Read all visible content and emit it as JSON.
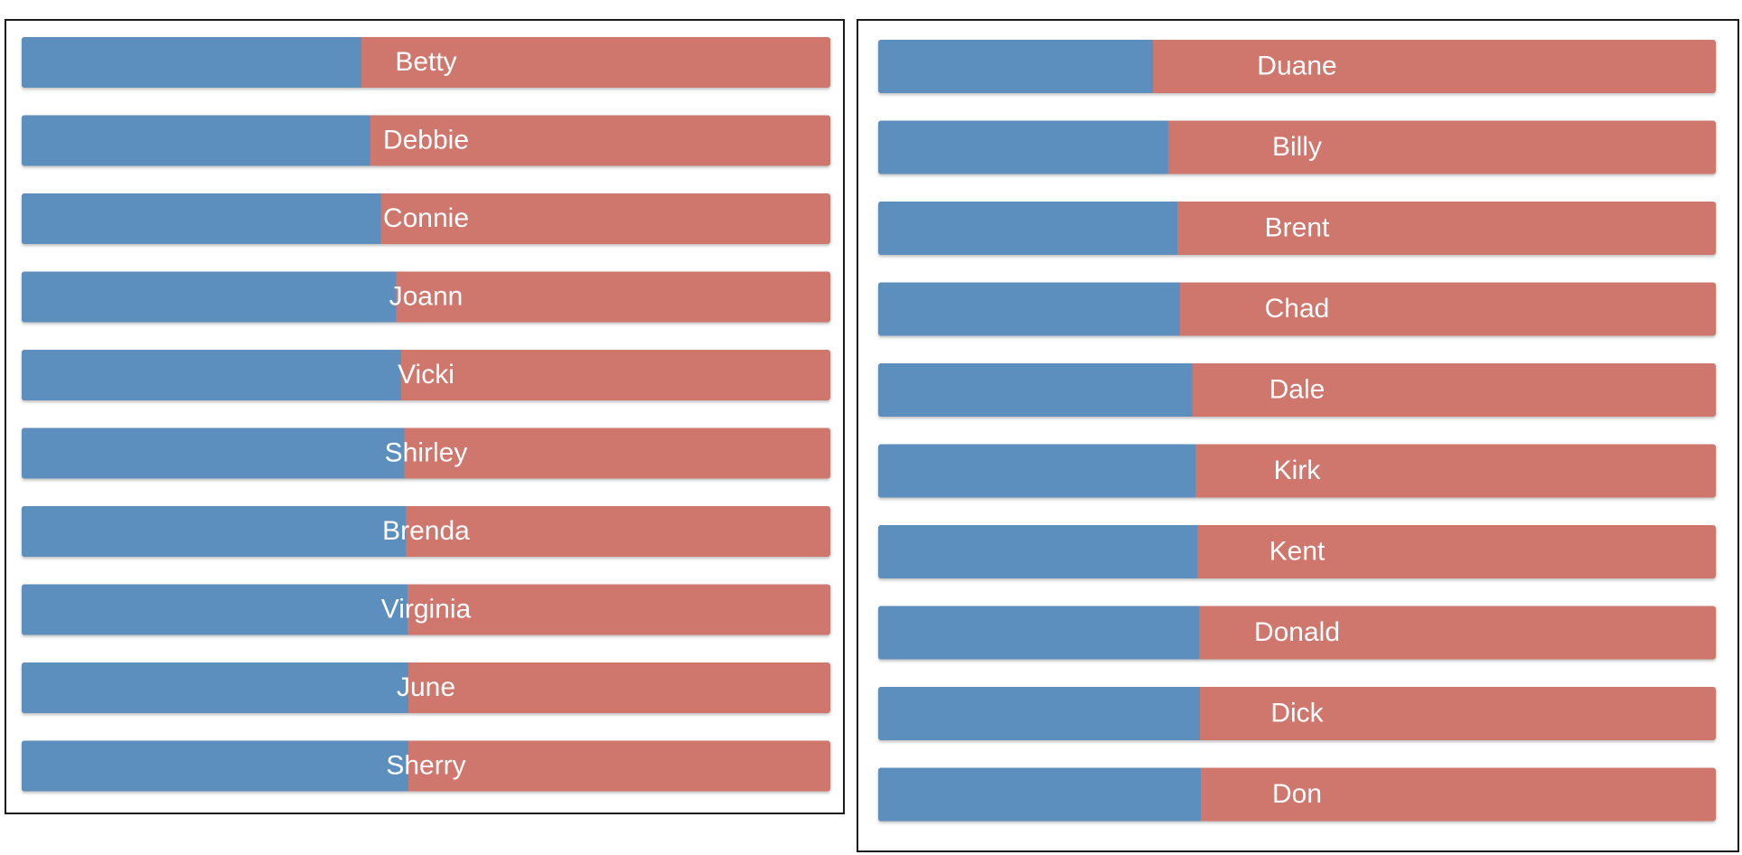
{
  "colors": {
    "left_segment": "#5b8fbe",
    "right_segment": "#cf766d",
    "label": "#ffffff",
    "border": "#1a1a1a"
  },
  "chart_data": [
    {
      "type": "bar",
      "orientation": "horizontal-stacked-proportion",
      "categories": [
        "Betty",
        "Debbie",
        "Connie",
        "Joann",
        "Vicki",
        "Shirley",
        "Brenda",
        "Virginia",
        "June",
        "Sherry"
      ],
      "series": [
        {
          "values": [
            0.42,
            0.431,
            0.444,
            0.463,
            0.469,
            0.473,
            0.475,
            0.477,
            0.478,
            0.478
          ]
        },
        {
          "values": [
            0.58,
            0.569,
            0.556,
            0.537,
            0.531,
            0.527,
            0.525,
            0.523,
            0.522,
            0.522
          ]
        }
      ],
      "xlim": [
        0,
        1
      ],
      "grid": false,
      "legend": "none"
    },
    {
      "type": "bar",
      "orientation": "horizontal-stacked-proportion",
      "categories": [
        "Duane",
        "Billy",
        "Brent",
        "Chad",
        "Dale",
        "Kirk",
        "Kent",
        "Donald",
        "Dick",
        "Don"
      ],
      "series": [
        {
          "values": [
            0.328,
            0.346,
            0.357,
            0.36,
            0.375,
            0.379,
            0.381,
            0.383,
            0.384,
            0.385
          ]
        },
        {
          "values": [
            0.672,
            0.654,
            0.643,
            0.64,
            0.625,
            0.621,
            0.619,
            0.617,
            0.616,
            0.615
          ]
        }
      ],
      "xlim": [
        0,
        1
      ],
      "grid": false,
      "legend": "none"
    }
  ]
}
